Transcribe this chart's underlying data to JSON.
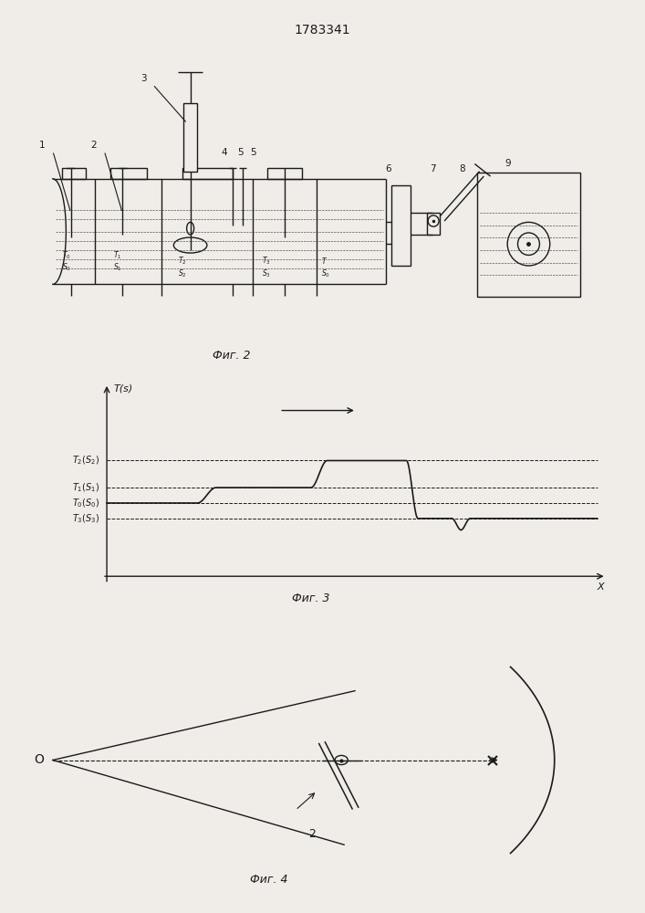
{
  "title_text": "1783341",
  "title_fontsize": 11,
  "fig2_label": "Фиг. 2",
  "fig3_label": "Фиг. 3",
  "fig4_label": "Фиг. 4",
  "bg_color": "#f0ede8",
  "line_color": "#1a1a1a"
}
